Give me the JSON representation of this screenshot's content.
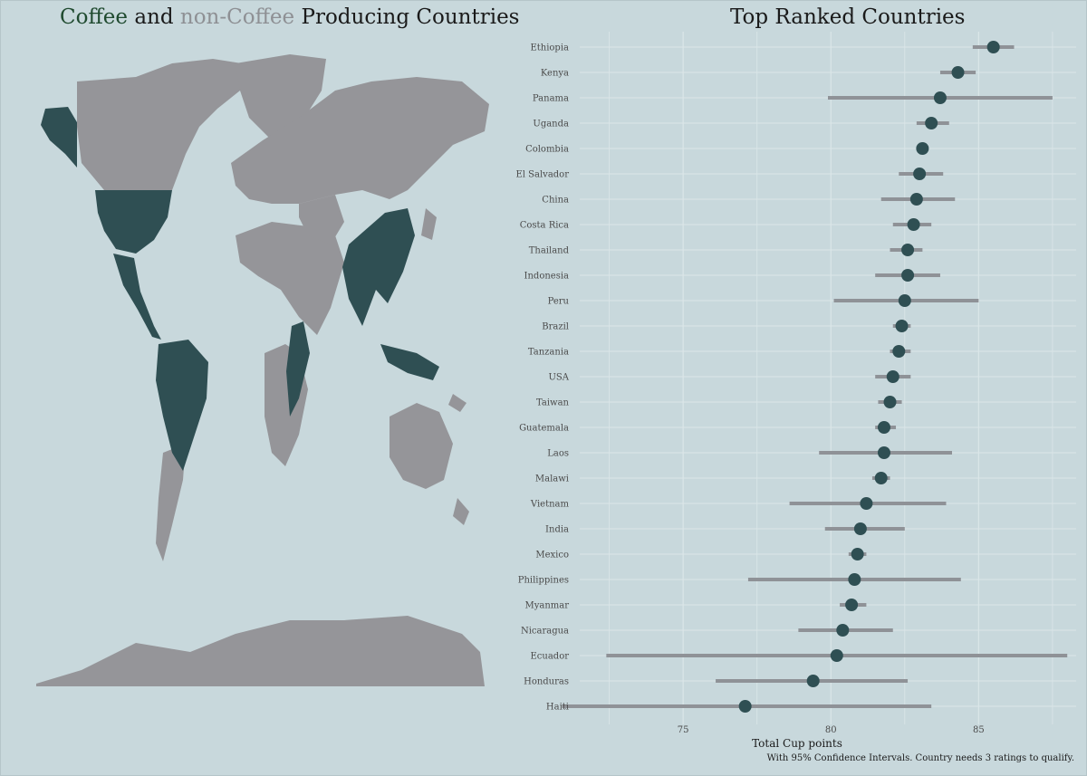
{
  "left_title": {
    "part1": "Coffee",
    "part2": "and",
    "part3": "non-Coffee",
    "part4": "Producing Countries"
  },
  "colors": {
    "coffee": "#2f4f53",
    "non_coffee": "#959599",
    "background": "#c8d8dc",
    "ci_bar": "#8f9297",
    "point": "#2f4f53"
  },
  "chart_data": {
    "type": "scatter",
    "title": "Top Ranked Countries",
    "xlabel": "Total Cup points",
    "caption": "With 95% Confidence Intervals. Country needs 3 ratings to qualify.",
    "xlim": [
      71.5,
      88.3
    ],
    "xticks": [
      75,
      80,
      85
    ],
    "grid": true,
    "points": [
      {
        "country": "Ethiopia",
        "mean": 85.5,
        "low": 84.8,
        "high": 86.2
      },
      {
        "country": "Kenya",
        "mean": 84.3,
        "low": 83.7,
        "high": 84.9
      },
      {
        "country": "Panama",
        "mean": 83.7,
        "low": 79.9,
        "high": 87.5
      },
      {
        "country": "Uganda",
        "mean": 83.4,
        "low": 82.9,
        "high": 84.0
      },
      {
        "country": "Colombia",
        "mean": 83.1,
        "low": 82.9,
        "high": 83.3
      },
      {
        "country": "El Salvador",
        "mean": 83.0,
        "low": 82.3,
        "high": 83.8
      },
      {
        "country": "China",
        "mean": 82.9,
        "low": 81.7,
        "high": 84.2
      },
      {
        "country": "Costa Rica",
        "mean": 82.8,
        "low": 82.1,
        "high": 83.4
      },
      {
        "country": "Thailand",
        "mean": 82.6,
        "low": 82.0,
        "high": 83.1
      },
      {
        "country": "Indonesia",
        "mean": 82.6,
        "low": 81.5,
        "high": 83.7
      },
      {
        "country": "Peru",
        "mean": 82.5,
        "low": 80.1,
        "high": 85.0
      },
      {
        "country": "Brazil",
        "mean": 82.4,
        "low": 82.1,
        "high": 82.7
      },
      {
        "country": "Tanzania",
        "mean": 82.3,
        "low": 82.0,
        "high": 82.7
      },
      {
        "country": "USA",
        "mean": 82.1,
        "low": 81.5,
        "high": 82.7
      },
      {
        "country": "Taiwan",
        "mean": 82.0,
        "low": 81.6,
        "high": 82.4
      },
      {
        "country": "Guatemala",
        "mean": 81.8,
        "low": 81.5,
        "high": 82.2
      },
      {
        "country": "Laos",
        "mean": 81.8,
        "low": 79.6,
        "high": 84.1
      },
      {
        "country": "Malawi",
        "mean": 81.7,
        "low": 81.4,
        "high": 82.0
      },
      {
        "country": "Vietnam",
        "mean": 81.2,
        "low": 78.6,
        "high": 83.9
      },
      {
        "country": "India",
        "mean": 81.0,
        "low": 79.8,
        "high": 82.5
      },
      {
        "country": "Mexico",
        "mean": 80.9,
        "low": 80.6,
        "high": 81.2
      },
      {
        "country": "Philippines",
        "mean": 80.8,
        "low": 77.2,
        "high": 84.4
      },
      {
        "country": "Myanmar",
        "mean": 80.7,
        "low": 80.3,
        "high": 81.2
      },
      {
        "country": "Nicaragua",
        "mean": 80.4,
        "low": 78.9,
        "high": 82.1
      },
      {
        "country": "Ecuador",
        "mean": 80.2,
        "low": 72.4,
        "high": 88.0
      },
      {
        "country": "Honduras",
        "mean": 79.4,
        "low": 76.1,
        "high": 82.6
      },
      {
        "country": "Haiti",
        "mean": 77.1,
        "low": 70.9,
        "high": 83.4
      }
    ]
  }
}
